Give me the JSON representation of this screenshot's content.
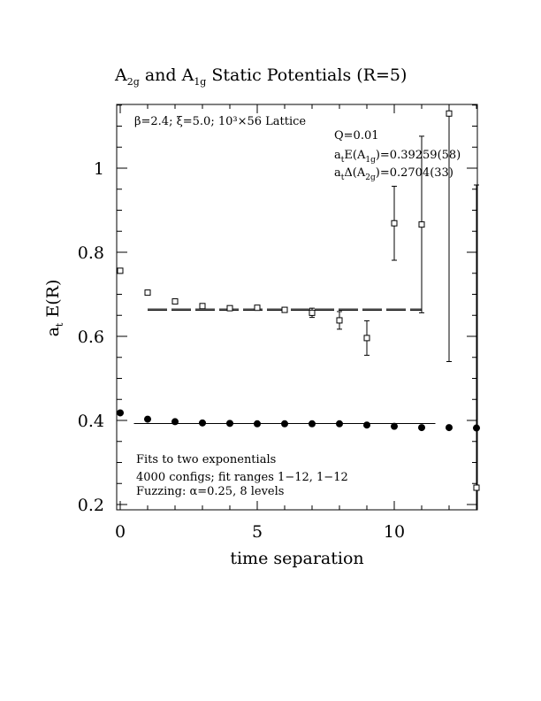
{
  "chart_data": {
    "type": "scatter",
    "title": {
      "parts": [
        "A",
        "2g",
        " and A",
        "1g",
        " Static Potentials (R=5)"
      ]
    },
    "xlabel": "time separation",
    "ylabel": {
      "main": "a",
      "sub": "t",
      "rest": " E(R)"
    },
    "xlim": [
      0,
      13
    ],
    "ylim": [
      0.2,
      1.15
    ],
    "xticks": [
      0,
      5,
      10
    ],
    "yticks": [
      0.2,
      0.4,
      0.6,
      0.8,
      1.0
    ],
    "xtick_labels": [
      "0",
      "5",
      "10"
    ],
    "ytick_labels": [
      "0.2",
      "0.4",
      "0.6",
      "0.8",
      "1"
    ],
    "annotations": {
      "lattice": "β=2.4; ξ=5.0; 10³×56 Lattice",
      "q": "Q=0.01",
      "energy": {
        "pre": "a",
        "sub1": "t",
        "mid": "E(A",
        "sub2": "1g",
        "post": ")=0.39259(58)"
      },
      "gap": {
        "pre": "a",
        "sub1": "t",
        "mid": "Δ(A",
        "sub2": "2g",
        "post": ")=0.2704(33)"
      },
      "fits": "Fits to two exponentials",
      "configs": "4000 configs; fit ranges 1−12, 1−12",
      "fuzzing": "Fuzzing: α=0.25, 8 levels"
    },
    "series": [
      {
        "marker": "open-square",
        "x": [
          0,
          1,
          2,
          3,
          4,
          5,
          6,
          7,
          8,
          9,
          10,
          11,
          12,
          13
        ],
        "y": [
          0.756,
          0.704,
          0.683,
          0.672,
          0.667,
          0.668,
          0.663,
          0.656,
          0.638,
          0.596,
          0.869,
          0.866,
          1.13,
          0.24
        ],
        "yerr": [
          0.004,
          0.004,
          0.004,
          0.005,
          0.005,
          0.006,
          0.007,
          0.011,
          0.021,
          0.041,
          0.088,
          0.21,
          0.59,
          0.72
        ]
      },
      {
        "marker": "filled-circle",
        "x": [
          0,
          1,
          2,
          3,
          4,
          5,
          6,
          7,
          8,
          9,
          10,
          11,
          12,
          13
        ],
        "y": [
          0.418,
          0.403,
          0.397,
          0.394,
          0.393,
          0.392,
          0.392,
          0.392,
          0.392,
          0.389,
          0.386,
          0.383,
          0.383,
          0.382
        ],
        "yerr": [
          0.002,
          0.002,
          0.002,
          0.002,
          0.002,
          0.002,
          0.002,
          0.002,
          0.002,
          0.002,
          0.002,
          0.002,
          0.002,
          0.002
        ]
      }
    ],
    "fit_lines": [
      {
        "style": "dashed",
        "x_range": [
          1,
          11
        ],
        "y": [
          0.662,
          0.665
        ]
      },
      {
        "style": "solid",
        "x_range": [
          0.5,
          11.5
        ],
        "y": [
          0.3926
        ]
      }
    ]
  }
}
